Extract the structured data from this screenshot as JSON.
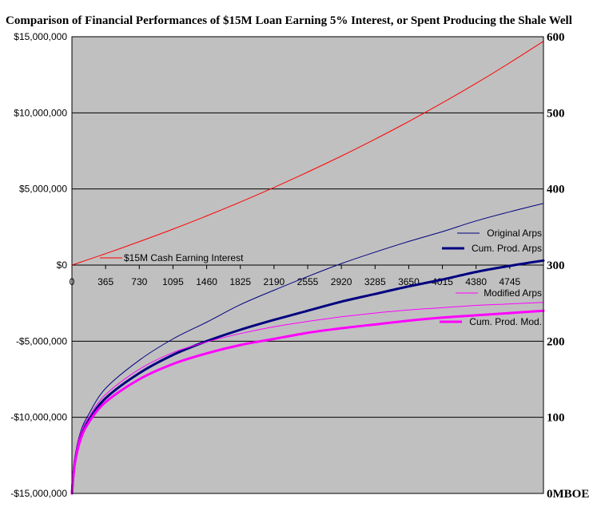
{
  "chart_data": {
    "type": "line",
    "title": "Comparison of Financial Performances of $15M Loan Earning 5% Interest, or Spent Producing the Shale Well",
    "xlabel": "",
    "ylabel_left": "",
    "ylabel_right": "",
    "xlim": [
      0,
      5110
    ],
    "x_ticks": [
      0,
      365,
      730,
      1095,
      1460,
      1825,
      2190,
      2555,
      2920,
      3285,
      3650,
      4015,
      4380,
      4745
    ],
    "x_tick_labels": [
      "0",
      "365",
      "730",
      "1095",
      "1460",
      "1825",
      "2190",
      "2555",
      "2920",
      "3285",
      "3650",
      "4015",
      "4380",
      "4745"
    ],
    "ylim_left": [
      -15000000,
      15000000
    ],
    "y_left_ticks": [
      15000000,
      10000000,
      5000000,
      0,
      -5000000,
      -10000000,
      -15000000
    ],
    "y_left_tick_labels": [
      "$15,000,000",
      "$10,000,000",
      "$5,000,000",
      "$0",
      "-$5,000,000",
      "-$10,000,000",
      "-$15,000,000"
    ],
    "ylim_right": [
      0,
      600
    ],
    "y_right_ticks": [
      600,
      500,
      400,
      300,
      200,
      100,
      0
    ],
    "y_right_tick_labels": [
      "600",
      "500",
      "400",
      "300",
      "200",
      "100",
      "0MBOE"
    ],
    "grid": true,
    "background_color": "#c0c0c0",
    "series": [
      {
        "name": "$15M Cash Earning Interest",
        "axis": "left",
        "color": "#ff0000",
        "x": [
          0,
          365,
          730,
          1095,
          1460,
          1825,
          2190,
          2555,
          2920,
          3285,
          3650,
          4015,
          4380,
          4745,
          5110
        ],
        "y": [
          0,
          750000,
          1540000,
          2360000,
          3230000,
          4140000,
          5100000,
          6110000,
          7160000,
          8270000,
          9430000,
          10660000,
          11940000,
          13290000,
          14700000
        ]
      },
      {
        "name": "Original Arps",
        "axis": "right",
        "color": "#000080",
        "x": [
          0,
          30,
          91,
          182,
          365,
          730,
          1095,
          1460,
          1825,
          2190,
          2555,
          2920,
          3285,
          3650,
          4015,
          4380,
          4745,
          5110
        ],
        "y": [
          0,
          45,
          80,
          104,
          138,
          175,
          203,
          225,
          248,
          267,
          285,
          302,
          317,
          331,
          344,
          358,
          370,
          381
        ]
      },
      {
        "name": "Cum. Prod. Arps",
        "axis": "right",
        "color": "#000080",
        "x": [
          0,
          30,
          91,
          182,
          365,
          730,
          1095,
          1460,
          1825,
          2190,
          2555,
          2920,
          3285,
          3650,
          4015,
          4380,
          4745,
          5110
        ],
        "y": [
          0,
          40,
          72,
          96,
          125,
          158,
          182,
          200,
          215,
          228,
          240,
          252,
          262,
          272,
          281,
          291,
          299,
          306
        ]
      },
      {
        "name": "Modified Arps",
        "axis": "right",
        "color": "#ff00ff",
        "x": [
          0,
          30,
          91,
          182,
          365,
          730,
          1095,
          1460,
          1825,
          2190,
          2555,
          2920,
          3285,
          3650,
          4015,
          4380,
          4745,
          5110
        ],
        "y": [
          0,
          42,
          78,
          100,
          130,
          163,
          185,
          199,
          210,
          219,
          226,
          232,
          237,
          241,
          244,
          247,
          249,
          251
        ]
      },
      {
        "name": "Cum. Prod. Mod.",
        "axis": "right",
        "color": "#ff00ff",
        "x": [
          0,
          30,
          91,
          182,
          365,
          730,
          1095,
          1460,
          1825,
          2190,
          2555,
          2920,
          3285,
          3650,
          4015,
          4380,
          4745,
          5110
        ],
        "y": [
          0,
          38,
          70,
          93,
          120,
          150,
          170,
          184,
          195,
          203,
          211,
          217,
          222,
          227,
          231,
          234,
          237,
          240
        ]
      }
    ]
  }
}
